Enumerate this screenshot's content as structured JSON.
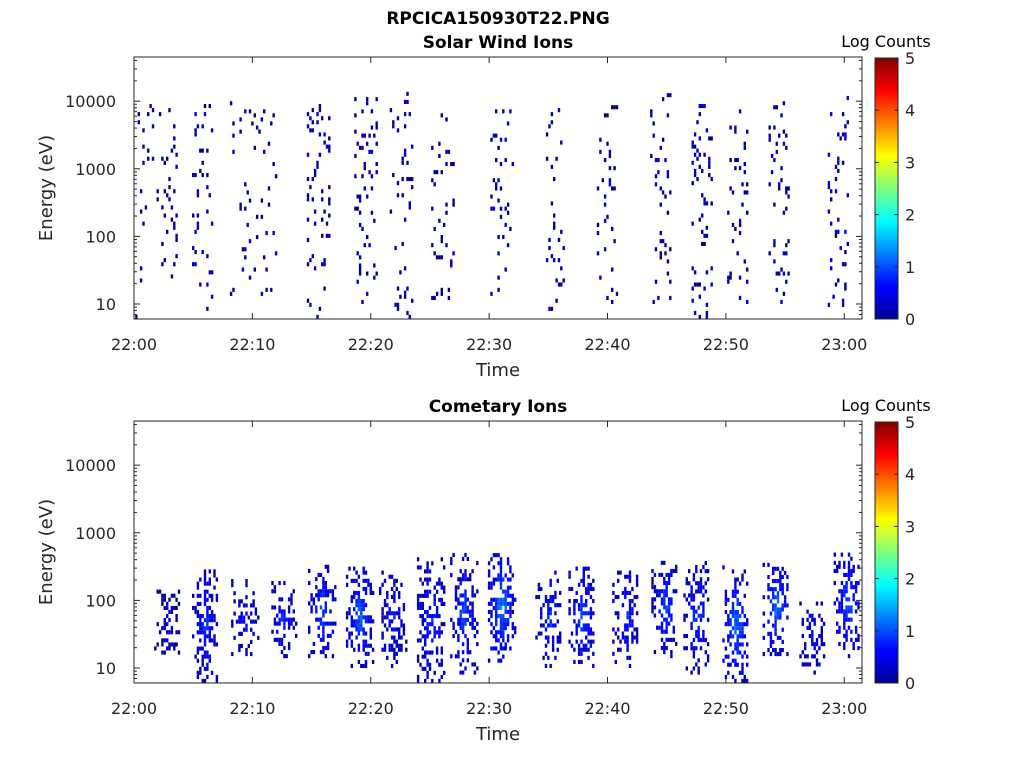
{
  "figure": {
    "title": "RPCICA150930T22.PNG"
  },
  "colorbar": {
    "label": "Log Counts",
    "ticks": [
      0,
      1,
      2,
      3,
      4,
      5
    ],
    "range": [
      0,
      5
    ],
    "colormap": "jet"
  },
  "chart_data": [
    {
      "type": "heatmap",
      "title": "Solar Wind Ions",
      "xlabel": "Time",
      "ylabel": "Energy (eV)",
      "yscale": "log",
      "ylim": [
        6,
        45000
      ],
      "xlim": [
        "22:00",
        "23:01.5"
      ],
      "xticks": [
        "22:00",
        "22:10",
        "22:20",
        "22:30",
        "22:40",
        "22:50",
        "23:00"
      ],
      "yticks": [
        10,
        100,
        1000,
        10000
      ],
      "grid": false,
      "value_label": "Log Counts",
      "description_of_values": "sparse isolated pixels, almost all at 0-0.5 log counts",
      "clusters": [
        {
          "t": 0.6,
          "emin": 6,
          "emax": 8000,
          "density": 0.08,
          "vmax": 0.3
        },
        {
          "t": 2.8,
          "emin": 6,
          "emax": 7000,
          "density": 0.1,
          "vmax": 0.3
        },
        {
          "t": 5.8,
          "emin": 6,
          "emax": 8000,
          "density": 0.18,
          "vmax": 0.4
        },
        {
          "t": 9.0,
          "emin": 10,
          "emax": 9000,
          "density": 0.12,
          "vmax": 0.3
        },
        {
          "t": 11.0,
          "emin": 10,
          "emax": 8000,
          "density": 0.12,
          "vmax": 0.3
        },
        {
          "t": 15.5,
          "emin": 6,
          "emax": 9000,
          "density": 0.18,
          "vmax": 0.4
        },
        {
          "t": 19.5,
          "emin": 10,
          "emax": 12000,
          "density": 0.2,
          "vmax": 0.4
        },
        {
          "t": 22.5,
          "emin": 6,
          "emax": 12000,
          "density": 0.15,
          "vmax": 0.3
        },
        {
          "t": 26.0,
          "emin": 10,
          "emax": 9000,
          "density": 0.16,
          "vmax": 0.3
        },
        {
          "t": 31.0,
          "emin": 10,
          "emax": 8000,
          "density": 0.2,
          "vmax": 0.5
        },
        {
          "t": 35.5,
          "emin": 6,
          "emax": 7000,
          "density": 0.14,
          "vmax": 0.3
        },
        {
          "t": 40.0,
          "emin": 10,
          "emax": 8000,
          "density": 0.16,
          "vmax": 0.3
        },
        {
          "t": 44.5,
          "emin": 10,
          "emax": 12000,
          "density": 0.18,
          "vmax": 0.4
        },
        {
          "t": 48.0,
          "emin": 6,
          "emax": 9000,
          "density": 0.2,
          "vmax": 0.4
        },
        {
          "t": 51.0,
          "emin": 10,
          "emax": 8000,
          "density": 0.18,
          "vmax": 0.4
        },
        {
          "t": 54.5,
          "emin": 10,
          "emax": 9000,
          "density": 0.18,
          "vmax": 0.4
        },
        {
          "t": 59.5,
          "emin": 6,
          "emax": 11000,
          "density": 0.22,
          "vmax": 0.5
        }
      ]
    },
    {
      "type": "heatmap",
      "title": "Cometary Ions",
      "xlabel": "Time",
      "ylabel": "Energy (eV)",
      "yscale": "log",
      "ylim": [
        6,
        45000
      ],
      "xlim": [
        "22:00",
        "23:01.5"
      ],
      "xticks": [
        "22:00",
        "22:10",
        "22:20",
        "22:30",
        "22:40",
        "22:50",
        "23:00"
      ],
      "yticks": [
        10,
        100,
        1000,
        10000
      ],
      "grid": false,
      "value_label": "Log Counts",
      "description_of_values": "periodic bursts roughly every 2-3 min between ~6 and ~500 eV, peak ~1.0-1.5 log counts near 40-100 eV",
      "clusters": [
        {
          "t": 2.8,
          "emin": 12,
          "emax": 150,
          "density": 0.55,
          "vmax": 0.5
        },
        {
          "t": 6.0,
          "emin": 6,
          "emax": 260,
          "density": 0.75,
          "vmax": 1.0
        },
        {
          "t": 9.3,
          "emin": 15,
          "emax": 200,
          "density": 0.55,
          "vmax": 0.8
        },
        {
          "t": 12.5,
          "emin": 14,
          "emax": 180,
          "density": 0.6,
          "vmax": 1.0
        },
        {
          "t": 15.8,
          "emin": 14,
          "emax": 300,
          "density": 0.7,
          "vmax": 1.2
        },
        {
          "t": 19.0,
          "emin": 10,
          "emax": 300,
          "density": 0.75,
          "vmax": 1.3
        },
        {
          "t": 21.8,
          "emin": 10,
          "emax": 250,
          "density": 0.6,
          "vmax": 0.9
        },
        {
          "t": 25.0,
          "emin": 6,
          "emax": 400,
          "density": 0.7,
          "vmax": 1.0
        },
        {
          "t": 27.8,
          "emin": 8,
          "emax": 450,
          "density": 0.75,
          "vmax": 1.2
        },
        {
          "t": 31.0,
          "emin": 12,
          "emax": 500,
          "density": 0.8,
          "vmax": 1.5
        },
        {
          "t": 35.0,
          "emin": 10,
          "emax": 250,
          "density": 0.6,
          "vmax": 1.1
        },
        {
          "t": 37.8,
          "emin": 10,
          "emax": 300,
          "density": 0.7,
          "vmax": 1.2
        },
        {
          "t": 41.5,
          "emin": 10,
          "emax": 250,
          "density": 0.6,
          "vmax": 1.0
        },
        {
          "t": 44.8,
          "emin": 14,
          "emax": 350,
          "density": 0.7,
          "vmax": 1.2
        },
        {
          "t": 47.5,
          "emin": 8,
          "emax": 350,
          "density": 0.75,
          "vmax": 1.1
        },
        {
          "t": 50.8,
          "emin": 6,
          "emax": 300,
          "density": 0.8,
          "vmax": 1.4
        },
        {
          "t": 54.2,
          "emin": 15,
          "emax": 350,
          "density": 0.7,
          "vmax": 1.4
        },
        {
          "t": 57.3,
          "emin": 8,
          "emax": 120,
          "density": 0.55,
          "vmax": 0.8
        },
        {
          "t": 60.2,
          "emin": 14,
          "emax": 500,
          "density": 0.75,
          "vmax": 1.2
        }
      ]
    }
  ]
}
